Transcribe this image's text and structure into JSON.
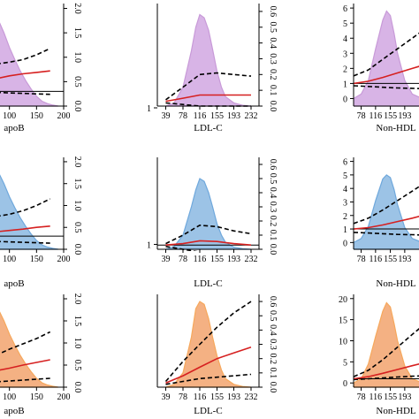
{
  "chart_data": [
    {
      "type": "area",
      "panel": "row1-col1",
      "xlabel": "apoB",
      "x_ticks": [
        "100",
        "150",
        "200"
      ],
      "x_range": [
        50,
        200
      ],
      "y2_ticks": [
        "0.0",
        "0.5",
        "1.0",
        "1.5",
        "2.0"
      ],
      "y2_range": [
        0,
        2.1
      ],
      "density": {
        "color": "#d8b4e6",
        "x": [
          50,
          60,
          70,
          80,
          90,
          100,
          110,
          120,
          130,
          140,
          150,
          160,
          170,
          180,
          190
        ],
        "y": [
          2.0,
          2.05,
          1.95,
          1.75,
          1.5,
          1.2,
          0.95,
          0.72,
          0.52,
          0.35,
          0.2,
          0.1,
          0.05,
          0.02,
          0.0
        ]
      },
      "or_curve": {
        "x": [
          50,
          75,
          100,
          125,
          150,
          175
        ],
        "y": [
          0.5,
          0.56,
          0.62,
          0.66,
          0.69,
          0.72
        ]
      },
      "ci_upper": {
        "x": [
          50,
          75,
          100,
          125,
          150,
          175
        ],
        "y": [
          0.83,
          0.86,
          0.9,
          0.95,
          1.05,
          1.18
        ]
      },
      "ci_lower": {
        "x": [
          50,
          75,
          100,
          125,
          150,
          175
        ],
        "y": [
          0.3,
          0.28,
          0.27,
          0.26,
          0.25,
          0.24
        ]
      },
      "reference": 0.3
    },
    {
      "type": "area",
      "panel": "row1-col2",
      "xlabel": "LDL-C",
      "x_ticks": [
        "39",
        "78",
        "116",
        "155",
        "193",
        "232"
      ],
      "x_range": [
        20,
        250
      ],
      "y_ticks": [
        "1"
      ],
      "y2_ticks": [
        "0.0",
        "0.1",
        "0.2",
        "0.3",
        "0.4",
        "0.5",
        "0.6"
      ],
      "y2_range": [
        0,
        0.65
      ],
      "density": {
        "color": "#d8b4e6",
        "x": [
          39,
          58,
          78,
          97,
          107,
          116,
          126,
          136,
          145,
          155,
          165,
          174,
          193,
          213,
          232
        ],
        "y": [
          0.0,
          0.02,
          0.12,
          0.35,
          0.5,
          0.58,
          0.56,
          0.48,
          0.36,
          0.22,
          0.12,
          0.06,
          0.02,
          0.005,
          0.0
        ]
      },
      "or_curve": {
        "x": [
          39,
          78,
          116,
          155,
          193,
          232
        ],
        "y": [
          0.03,
          0.05,
          0.07,
          0.07,
          0.07,
          0.07
        ]
      },
      "ci_upper": {
        "x": [
          39,
          78,
          116,
          155,
          193,
          232
        ],
        "y": [
          0.04,
          0.12,
          0.2,
          0.21,
          0.2,
          0.19
        ]
      },
      "ci_lower": {
        "x": [
          39,
          78,
          116,
          155,
          193,
          232
        ],
        "y": [
          0.02,
          0.01,
          0.0,
          0.0,
          0.0,
          0.0
        ]
      },
      "reference": 0.0
    },
    {
      "type": "area",
      "panel": "row1-col3",
      "xlabel": "Non-HDL",
      "x_ticks": [
        "78",
        "116",
        "155",
        "193"
      ],
      "x_range": [
        58,
        240
      ],
      "y_ticks": [
        "0",
        "1",
        "2",
        "3",
        "4",
        "5",
        "6"
      ],
      "y_range": [
        -0.5,
        6.3
      ],
      "density": {
        "color": "#d8b4e6",
        "x": [
          58,
          78,
          97,
          116,
          135,
          145,
          155,
          165,
          174,
          193,
          213,
          240
        ],
        "y": [
          0.0,
          0.3,
          1.2,
          3.3,
          5.2,
          5.8,
          5.5,
          4.3,
          3.0,
          1.2,
          0.3,
          0.0
        ]
      },
      "or_curve": {
        "x": [
          58,
          97,
          135,
          174,
          213,
          240
        ],
        "y": [
          1.0,
          1.15,
          1.4,
          1.7,
          2.0,
          2.2
        ]
      },
      "ci_upper": {
        "x": [
          58,
          97,
          135,
          174,
          213,
          240
        ],
        "y": [
          1.5,
          1.9,
          2.6,
          3.3,
          4.0,
          4.5
        ]
      },
      "ci_lower": {
        "x": [
          58,
          97,
          135,
          174,
          213,
          240
        ],
        "y": [
          0.85,
          0.8,
          0.75,
          0.7,
          0.68,
          0.65
        ]
      },
      "reference": 1.0
    },
    {
      "type": "area",
      "panel": "row2-col1",
      "xlabel": "apoB",
      "x_ticks": [
        "100",
        "150",
        "200"
      ],
      "x_range": [
        50,
        200
      ],
      "y2_ticks": [
        "0.0",
        "0.5",
        "1.0",
        "1.5",
        "2.0"
      ],
      "y2_range": [
        0,
        2.1
      ],
      "density": {
        "color": "#9cc3e6",
        "x": [
          50,
          60,
          70,
          80,
          90,
          100,
          110,
          120,
          130,
          140,
          150,
          160,
          170,
          180,
          190
        ],
        "y": [
          2.0,
          2.05,
          1.95,
          1.75,
          1.5,
          1.2,
          0.95,
          0.72,
          0.52,
          0.35,
          0.2,
          0.1,
          0.05,
          0.02,
          0.0
        ]
      },
      "or_curve": {
        "x": [
          50,
          75,
          100,
          125,
          150,
          175
        ],
        "y": [
          0.37,
          0.4,
          0.43,
          0.46,
          0.5,
          0.53
        ]
      },
      "ci_upper": {
        "x": [
          50,
          75,
          100,
          125,
          150,
          175
        ],
        "y": [
          0.7,
          0.75,
          0.8,
          0.88,
          1.0,
          1.15
        ]
      },
      "ci_lower": {
        "x": [
          50,
          75,
          100,
          125,
          150,
          175
        ],
        "y": [
          0.2,
          0.18,
          0.17,
          0.16,
          0.15,
          0.14
        ]
      },
      "reference": 0.3
    },
    {
      "type": "area",
      "panel": "row2-col2",
      "xlabel": "LDL-C",
      "x_ticks": [
        "39",
        "78",
        "116",
        "155",
        "193",
        "232"
      ],
      "x_range": [
        20,
        250
      ],
      "y_ticks": [
        "1"
      ],
      "y2_ticks": [
        "0.0",
        "0.1",
        "0.2",
        "0.3",
        "0.4",
        "0.5",
        "0.6"
      ],
      "y2_range": [
        0,
        0.65
      ],
      "density": {
        "color": "#9cc3e6",
        "x": [
          39,
          58,
          78,
          97,
          107,
          116,
          126,
          136,
          145,
          155,
          165,
          174,
          193,
          213,
          232
        ],
        "y": [
          0.0,
          0.02,
          0.1,
          0.3,
          0.42,
          0.5,
          0.48,
          0.4,
          0.3,
          0.18,
          0.1,
          0.05,
          0.015,
          0.004,
          0.0
        ]
      },
      "or_curve": {
        "x": [
          39,
          78,
          116,
          155,
          193,
          232
        ],
        "y": [
          0.03,
          0.04,
          0.06,
          0.055,
          0.04,
          0.03
        ]
      },
      "ci_upper": {
        "x": [
          39,
          78,
          116,
          155,
          193,
          232
        ],
        "y": [
          0.04,
          0.1,
          0.17,
          0.16,
          0.13,
          0.11
        ]
      },
      "ci_lower": {
        "x": [
          39,
          78,
          116,
          155,
          193,
          232
        ],
        "y": [
          0.02,
          0.0,
          -0.02,
          -0.03,
          -0.03,
          -0.03
        ]
      },
      "reference": 0.03
    },
    {
      "type": "area",
      "panel": "row2-col3",
      "xlabel": "Non-HDL",
      "x_ticks": [
        "78",
        "116",
        "155",
        "193"
      ],
      "x_range": [
        58,
        240
      ],
      "y_ticks": [
        "0",
        "1",
        "2",
        "3",
        "4",
        "5",
        "6"
      ],
      "y_range": [
        -0.5,
        6.3
      ],
      "density": {
        "color": "#9cc3e6",
        "x": [
          58,
          78,
          97,
          116,
          135,
          145,
          155,
          165,
          174,
          193,
          213,
          240
        ],
        "y": [
          0.0,
          0.3,
          1.2,
          3.1,
          4.7,
          5.0,
          4.8,
          3.9,
          2.8,
          1.1,
          0.3,
          0.0
        ]
      },
      "or_curve": {
        "x": [
          58,
          97,
          135,
          174,
          213,
          240
        ],
        "y": [
          1.0,
          1.1,
          1.3,
          1.55,
          1.8,
          2.0
        ]
      },
      "ci_upper": {
        "x": [
          58,
          97,
          135,
          174,
          213,
          240
        ],
        "y": [
          1.4,
          1.8,
          2.4,
          3.1,
          3.8,
          4.3
        ]
      },
      "ci_lower": {
        "x": [
          58,
          97,
          135,
          174,
          213,
          240
        ],
        "y": [
          0.75,
          0.7,
          0.65,
          0.6,
          0.58,
          0.55
        ]
      },
      "reference": 1.0
    },
    {
      "type": "area",
      "panel": "row3-col1",
      "xlabel": "apoB",
      "x_ticks": [
        "100",
        "150",
        "200"
      ],
      "x_range": [
        50,
        200
      ],
      "y2_ticks": [
        "0.0",
        "0.5",
        "1.0",
        "1.5",
        "2.0"
      ],
      "y2_range": [
        0,
        2.1
      ],
      "density": {
        "color": "#f4b183",
        "x": [
          50,
          60,
          70,
          80,
          90,
          100,
          110,
          120,
          130,
          140,
          150,
          160,
          170,
          180,
          190
        ],
        "y": [
          2.0,
          2.05,
          1.95,
          1.75,
          1.5,
          1.2,
          0.95,
          0.72,
          0.52,
          0.35,
          0.2,
          0.1,
          0.05,
          0.02,
          0.0
        ]
      },
      "or_curve": {
        "x": [
          50,
          75,
          100,
          125,
          150,
          175
        ],
        "y": [
          0.3,
          0.37,
          0.43,
          0.5,
          0.56,
          0.62
        ]
      },
      "ci_upper": {
        "x": [
          50,
          75,
          100,
          125,
          150,
          175
        ],
        "y": [
          0.6,
          0.72,
          0.86,
          0.98,
          1.1,
          1.25
        ]
      },
      "ci_lower": {
        "x": [
          50,
          75,
          100,
          125,
          150,
          175
        ],
        "y": [
          0.1,
          0.12,
          0.14,
          0.16,
          0.18,
          0.2
        ]
      },
      "reference": 0.0
    },
    {
      "type": "area",
      "panel": "row3-col2",
      "xlabel": "LDL-C",
      "x_ticks": [
        "39",
        "78",
        "116",
        "155",
        "193",
        "232"
      ],
      "x_range": [
        20,
        250
      ],
      "y_ticks": [
        "1"
      ],
      "y2_ticks": [
        "0.0",
        "0.1",
        "0.2",
        "0.3",
        "0.4",
        "0.5",
        "0.6"
      ],
      "y2_range": [
        0,
        0.65
      ],
      "density": {
        "color": "#f4b183",
        "x": [
          39,
          58,
          78,
          97,
          107,
          116,
          126,
          136,
          145,
          155,
          165,
          174,
          193,
          213,
          232
        ],
        "y": [
          0.0,
          0.02,
          0.1,
          0.35,
          0.55,
          0.6,
          0.58,
          0.48,
          0.35,
          0.22,
          0.12,
          0.06,
          0.02,
          0.005,
          0.0
        ]
      },
      "or_curve": {
        "x": [
          39,
          78,
          116,
          155,
          193,
          232
        ],
        "y": [
          0.03,
          0.08,
          0.14,
          0.2,
          0.24,
          0.28
        ]
      },
      "ci_upper": {
        "x": [
          39,
          78,
          116,
          155,
          193,
          232
        ],
        "y": [
          0.04,
          0.18,
          0.3,
          0.42,
          0.52,
          0.6
        ]
      },
      "ci_lower": {
        "x": [
          39,
          78,
          116,
          155,
          193,
          232
        ],
        "y": [
          0.02,
          0.04,
          0.06,
          0.07,
          0.08,
          0.09
        ]
      },
      "reference": 0.0
    },
    {
      "type": "area",
      "panel": "row3-col3",
      "xlabel": "Non-HDL",
      "x_ticks": [
        "78",
        "116",
        "155",
        "193"
      ],
      "x_range": [
        58,
        240
      ],
      "y_ticks": [
        "0",
        "5",
        "10",
        "15",
        "20"
      ],
      "y_range": [
        -1,
        21
      ],
      "density": {
        "color": "#f4b183",
        "x": [
          58,
          78,
          97,
          116,
          135,
          145,
          155,
          165,
          174,
          193,
          213,
          240
        ],
        "y": [
          0.0,
          1.0,
          4.5,
          11.0,
          17.0,
          19.0,
          18.0,
          14.0,
          10.0,
          4.0,
          1.0,
          0.0
        ]
      },
      "or_curve": {
        "x": [
          58,
          97,
          135,
          174,
          213,
          240
        ],
        "y": [
          1.0,
          1.5,
          2.3,
          3.2,
          4.1,
          4.7
        ]
      },
      "ci_upper": {
        "x": [
          58,
          97,
          135,
          174,
          213,
          240
        ],
        "y": [
          1.5,
          3.0,
          5.5,
          8.5,
          11.5,
          13.5
        ]
      },
      "ci_lower": {
        "x": [
          58,
          97,
          135,
          174,
          213,
          240
        ],
        "y": [
          0.8,
          1.0,
          1.2,
          1.4,
          1.6,
          1.7
        ]
      },
      "reference": 1.0
    }
  ],
  "colors": {
    "or_curve": "#d62020",
    "ci": "#000000",
    "reference": "#000000",
    "outline_purple": "#c89ad8",
    "outline_blue": "#6fa8dc",
    "outline_orange": "#f6a85c"
  }
}
